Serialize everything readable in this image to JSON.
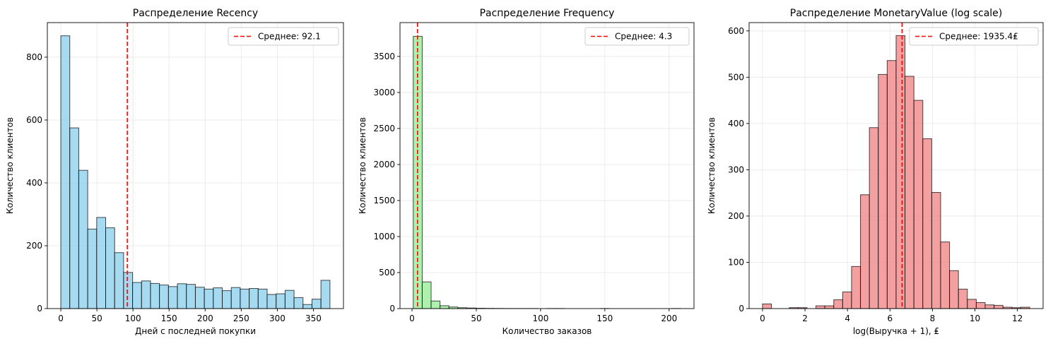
{
  "chart_data": [
    {
      "type": "bar",
      "title": "Распределение Recency",
      "xlabel": "Дней с последней покупки",
      "ylabel": "Количество клиентов",
      "xlim": [
        -18.65,
        391.65
      ],
      "ylim": [
        0,
        910
      ],
      "xticks": [
        0,
        50,
        100,
        150,
        200,
        250,
        300,
        350
      ],
      "yticks": [
        0,
        200,
        400,
        600,
        800
      ],
      "bin_start": 0,
      "bin_width": 12.43,
      "values": [
        868,
        575,
        440,
        253,
        290,
        257,
        178,
        115,
        83,
        88,
        80,
        75,
        70,
        79,
        77,
        68,
        62,
        66,
        57,
        67,
        62,
        64,
        62,
        45,
        47,
        58,
        35,
        13,
        30,
        90
      ],
      "bar_color": "#87ceeb",
      "mean_line": {
        "x": 92.1,
        "label": "Среднее: 92.1",
        "color": "#ff0000"
      },
      "legend_position": "top-right",
      "grid": true
    },
    {
      "type": "bar",
      "title": "Распределение Frequency",
      "xlabel": "Количество заказов",
      "ylabel": "Количество клиентов",
      "xlim": [
        -9.35,
        219.35
      ],
      "ylim": [
        0,
        3970
      ],
      "xticks": [
        0,
        50,
        100,
        150,
        200
      ],
      "yticks": [
        0,
        500,
        1000,
        1500,
        2000,
        2500,
        3000,
        3500
      ],
      "bin_start": 1,
      "bin_width": 6.93,
      "values": [
        3780,
        370,
        105,
        40,
        22,
        12,
        8,
        5,
        3,
        2,
        1,
        1,
        1,
        1,
        0,
        1,
        1,
        0,
        0,
        0,
        0,
        1,
        0,
        0,
        0,
        0,
        0,
        0,
        0,
        1
      ],
      "bar_color": "#90ee90",
      "mean_line": {
        "x": 4.3,
        "label": "Среднее: 4.3",
        "color": "#ff0000"
      },
      "legend_position": "top-right",
      "grid": true
    },
    {
      "type": "bar",
      "title": "Распределение MonetaryValue (log scale)",
      "xlabel": "log(Выручка + 1), ₤",
      "ylabel": "Количество клиентов",
      "xlim": [
        -0.63,
        13.21
      ],
      "ylim": [
        0,
        618
      ],
      "xticks": [
        0,
        2,
        4,
        6,
        8,
        10,
        12
      ],
      "yticks": [
        0,
        100,
        200,
        300,
        400,
        500,
        600
      ],
      "bin_start": 0,
      "bin_width": 0.4193,
      "values": [
        10,
        0,
        0,
        2,
        2,
        0,
        6,
        6,
        19,
        36,
        91,
        246,
        391,
        506,
        536,
        590,
        502,
        450,
        367,
        251,
        144,
        82,
        42,
        20,
        13,
        8,
        7,
        3,
        2,
        3
      ],
      "bar_color": "#f08080",
      "mean_line": {
        "x": 6.57,
        "label": "Среднее: 1935.4₤",
        "color": "#ff0000"
      },
      "legend_position": "top-right",
      "grid": true
    }
  ]
}
